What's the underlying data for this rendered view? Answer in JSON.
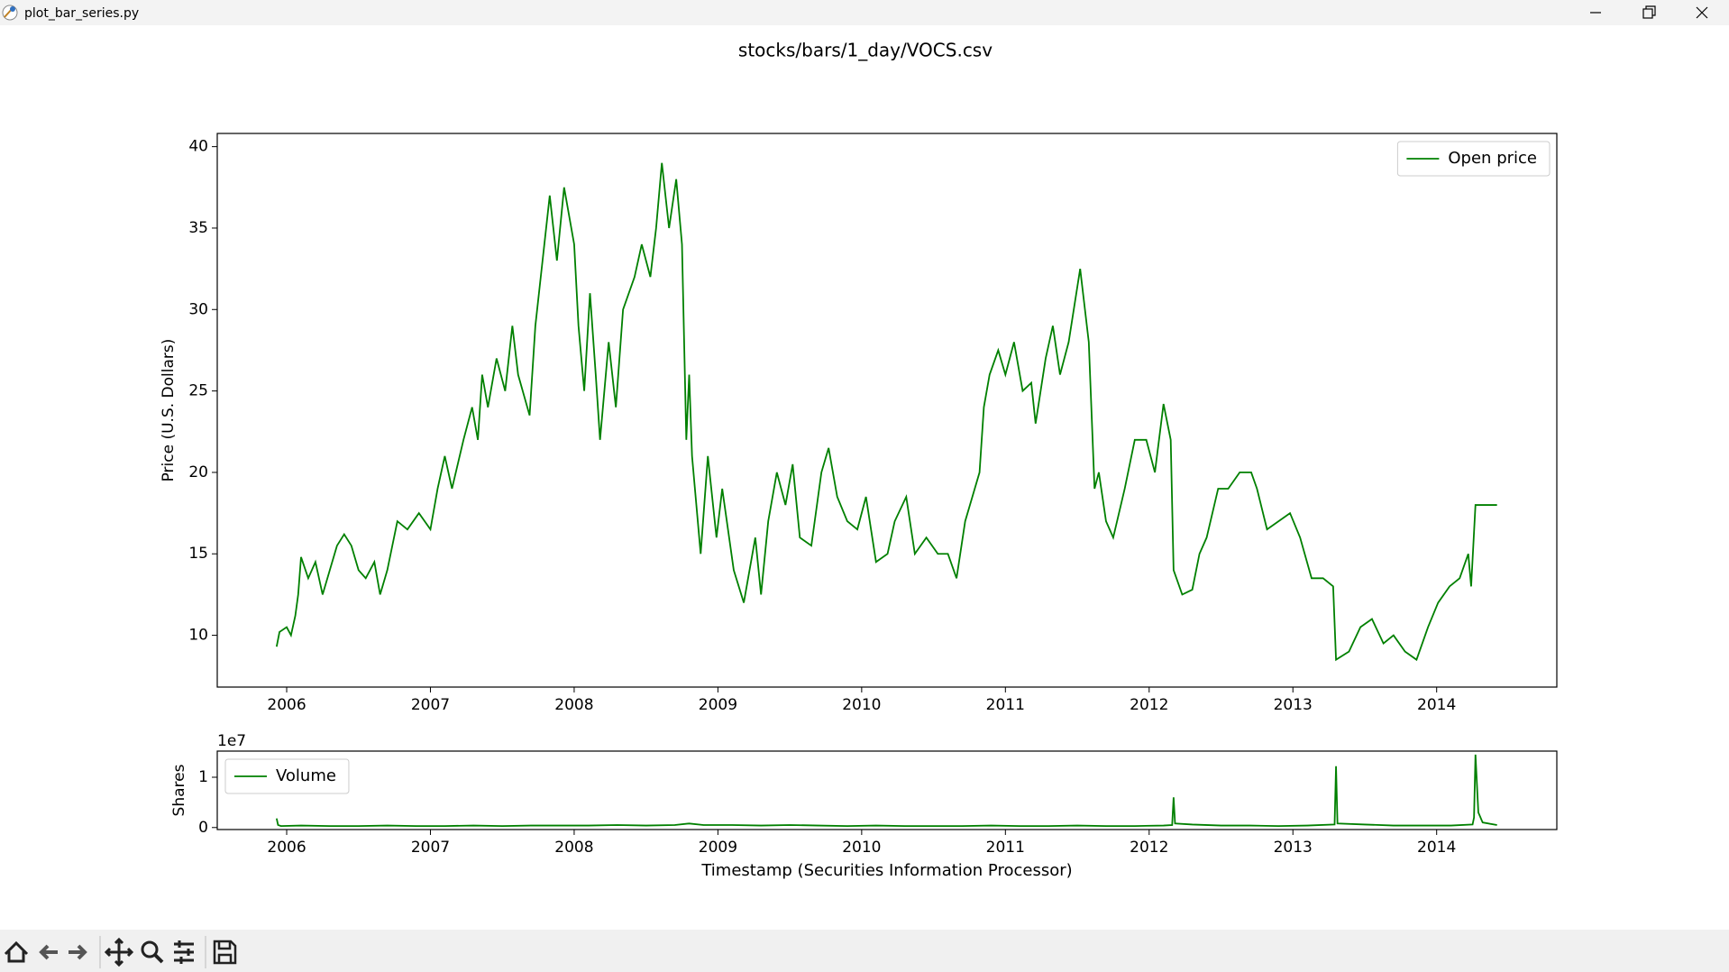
{
  "window": {
    "title": "plot_bar_series.py"
  },
  "figure": {
    "title": "stocks/bars/1_day/VOCS.csv"
  },
  "chart_data": [
    {
      "type": "line",
      "ylabel": "Price (U.S. Dollars)",
      "legend": "upper right",
      "grid": false,
      "xlim": [
        2005.517,
        2014.836
      ],
      "xticks": [
        2006,
        2007,
        2008,
        2009,
        2010,
        2011,
        2012,
        2013,
        2014
      ],
      "ylim": [
        6.82,
        40.81
      ],
      "yticks": [
        10,
        15,
        20,
        25,
        30,
        35,
        40
      ],
      "x": [
        2005.93,
        2005.95,
        2006.0,
        2006.03,
        2006.06,
        2006.08,
        2006.1,
        2006.15,
        2006.2,
        2006.25,
        2006.3,
        2006.35,
        2006.4,
        2006.45,
        2006.5,
        2006.55,
        2006.61,
        2006.65,
        2006.7,
        2006.77,
        2006.84,
        2006.92,
        2007.0,
        2007.05,
        2007.1,
        2007.15,
        2007.23,
        2007.29,
        2007.33,
        2007.36,
        2007.4,
        2007.46,
        2007.52,
        2007.57,
        2007.61,
        2007.69,
        2007.73,
        2007.78,
        2007.83,
        2007.88,
        2007.93,
        2008.0,
        2008.03,
        2008.07,
        2008.11,
        2008.15,
        2008.18,
        2008.24,
        2008.29,
        2008.34,
        2008.42,
        2008.47,
        2008.53,
        2008.57,
        2008.61,
        2008.66,
        2008.71,
        2008.75,
        2008.78,
        2008.8,
        2008.82,
        2008.88,
        2008.93,
        2008.99,
        2009.03,
        2009.11,
        2009.18,
        2009.26,
        2009.3,
        2009.35,
        2009.41,
        2009.47,
        2009.52,
        2009.57,
        2009.65,
        2009.72,
        2009.77,
        2009.83,
        2009.9,
        2009.97,
        2010.03,
        2010.1,
        2010.18,
        2010.23,
        2010.31,
        2010.37,
        2010.45,
        2010.53,
        2010.6,
        2010.66,
        2010.72,
        2010.77,
        2010.82,
        2010.85,
        2010.89,
        2010.95,
        2011.0,
        2011.06,
        2011.12,
        2011.18,
        2011.21,
        2011.28,
        2011.33,
        2011.38,
        2011.44,
        2011.52,
        2011.58,
        2011.62,
        2011.65,
        2011.7,
        2011.75,
        2011.83,
        2011.9,
        2011.98,
        2012.04,
        2012.1,
        2012.15,
        2012.17,
        2012.23,
        2012.3,
        2012.35,
        2012.4,
        2012.48,
        2012.55,
        2012.63,
        2012.71,
        2012.75,
        2012.82,
        2012.9,
        2012.98,
        2013.05,
        2013.13,
        2013.21,
        2013.28,
        2013.3,
        2013.39,
        2013.47,
        2013.55,
        2013.63,
        2013.7,
        2013.78,
        2013.86,
        2013.94,
        2014.01,
        2014.09,
        2014.16,
        2014.22,
        2014.24,
        2014.27,
        2014.42
      ],
      "series": [
        {
          "name": "Open price",
          "color": "#008000",
          "values": [
            9.3,
            10.2,
            10.5,
            10.0,
            11.2,
            12.5,
            14.8,
            13.5,
            14.5,
            12.5,
            14.0,
            15.5,
            16.2,
            15.5,
            14.0,
            13.5,
            14.5,
            12.5,
            14.0,
            17.0,
            16.5,
            17.5,
            16.5,
            19.0,
            21.0,
            19.0,
            22.0,
            24.0,
            22.0,
            26.0,
            24.0,
            27.0,
            25.0,
            29.0,
            26.0,
            23.5,
            29.0,
            33.0,
            37.0,
            33.0,
            37.5,
            34.0,
            29.0,
            25.0,
            31.0,
            26.0,
            22.0,
            28.0,
            24.0,
            30.0,
            32.0,
            34.0,
            32.0,
            35.0,
            39.0,
            35.0,
            38.0,
            34.0,
            22.0,
            26.0,
            21.0,
            15.0,
            21.0,
            16.0,
            19.0,
            14.0,
            12.0,
            16.0,
            12.5,
            17.0,
            20.0,
            18.0,
            20.5,
            16.0,
            15.5,
            20.0,
            21.5,
            18.5,
            17.0,
            16.5,
            18.5,
            14.5,
            15.0,
            17.0,
            18.5,
            15.0,
            16.0,
            15.0,
            15.0,
            13.5,
            17.0,
            18.5,
            20.0,
            24.0,
            26.0,
            27.5,
            26.0,
            28.0,
            25.0,
            25.5,
            23.0,
            27.0,
            29.0,
            26.0,
            28.0,
            32.5,
            28.0,
            19.0,
            20.0,
            17.0,
            16.0,
            19.0,
            22.0,
            22.0,
            20.0,
            24.2,
            22.0,
            14.0,
            12.5,
            12.8,
            15.0,
            16.0,
            19.0,
            19.0,
            20.0,
            20.0,
            19.0,
            16.5,
            17.0,
            17.5,
            16.0,
            13.5,
            13.5,
            13.0,
            8.5,
            9.0,
            10.5,
            11.0,
            9.5,
            10.0,
            9.0,
            8.5,
            10.5,
            12.0,
            13.0,
            13.5,
            15.0,
            13.0,
            18.0,
            18.0
          ]
        }
      ]
    },
    {
      "type": "line",
      "ylabel": "Shares",
      "xlabel": "Timestamp (Securities Information Processor)",
      "offset_label": "1e7",
      "legend": "upper left",
      "grid": false,
      "xlim": [
        2005.517,
        2014.836
      ],
      "xticks": [
        2006,
        2007,
        2008,
        2009,
        2010,
        2011,
        2012,
        2013,
        2014
      ],
      "ylim": [
        -0.04,
        1.52
      ],
      "yticks": [
        0,
        1
      ],
      "x": [
        2005.93,
        2005.94,
        2005.96,
        2006.1,
        2006.3,
        2006.5,
        2006.7,
        2006.9,
        2007.1,
        2007.3,
        2007.5,
        2007.7,
        2007.9,
        2008.1,
        2008.3,
        2008.5,
        2008.7,
        2008.8,
        2008.9,
        2009.1,
        2009.3,
        2009.5,
        2009.7,
        2009.9,
        2010.1,
        2010.3,
        2010.5,
        2010.7,
        2010.9,
        2011.1,
        2011.3,
        2011.5,
        2011.7,
        2011.9,
        2012.1,
        2012.16,
        2012.17,
        2012.18,
        2012.3,
        2012.5,
        2012.7,
        2012.9,
        2013.1,
        2013.29,
        2013.3,
        2013.31,
        2013.5,
        2013.7,
        2013.9,
        2014.1,
        2014.25,
        2014.26,
        2014.27,
        2014.29,
        2014.32,
        2014.42
      ],
      "series": [
        {
          "name": "Volume",
          "color": "#008000",
          "values": [
            0.18,
            0.05,
            0.03,
            0.04,
            0.03,
            0.03,
            0.04,
            0.03,
            0.03,
            0.04,
            0.03,
            0.04,
            0.04,
            0.04,
            0.05,
            0.04,
            0.05,
            0.08,
            0.05,
            0.05,
            0.04,
            0.05,
            0.04,
            0.03,
            0.04,
            0.03,
            0.03,
            0.03,
            0.04,
            0.03,
            0.03,
            0.04,
            0.03,
            0.03,
            0.04,
            0.05,
            0.6,
            0.08,
            0.06,
            0.04,
            0.04,
            0.03,
            0.04,
            0.06,
            1.22,
            0.08,
            0.06,
            0.04,
            0.04,
            0.04,
            0.06,
            0.2,
            1.45,
            0.3,
            0.1,
            0.05
          ]
        }
      ]
    }
  ]
}
